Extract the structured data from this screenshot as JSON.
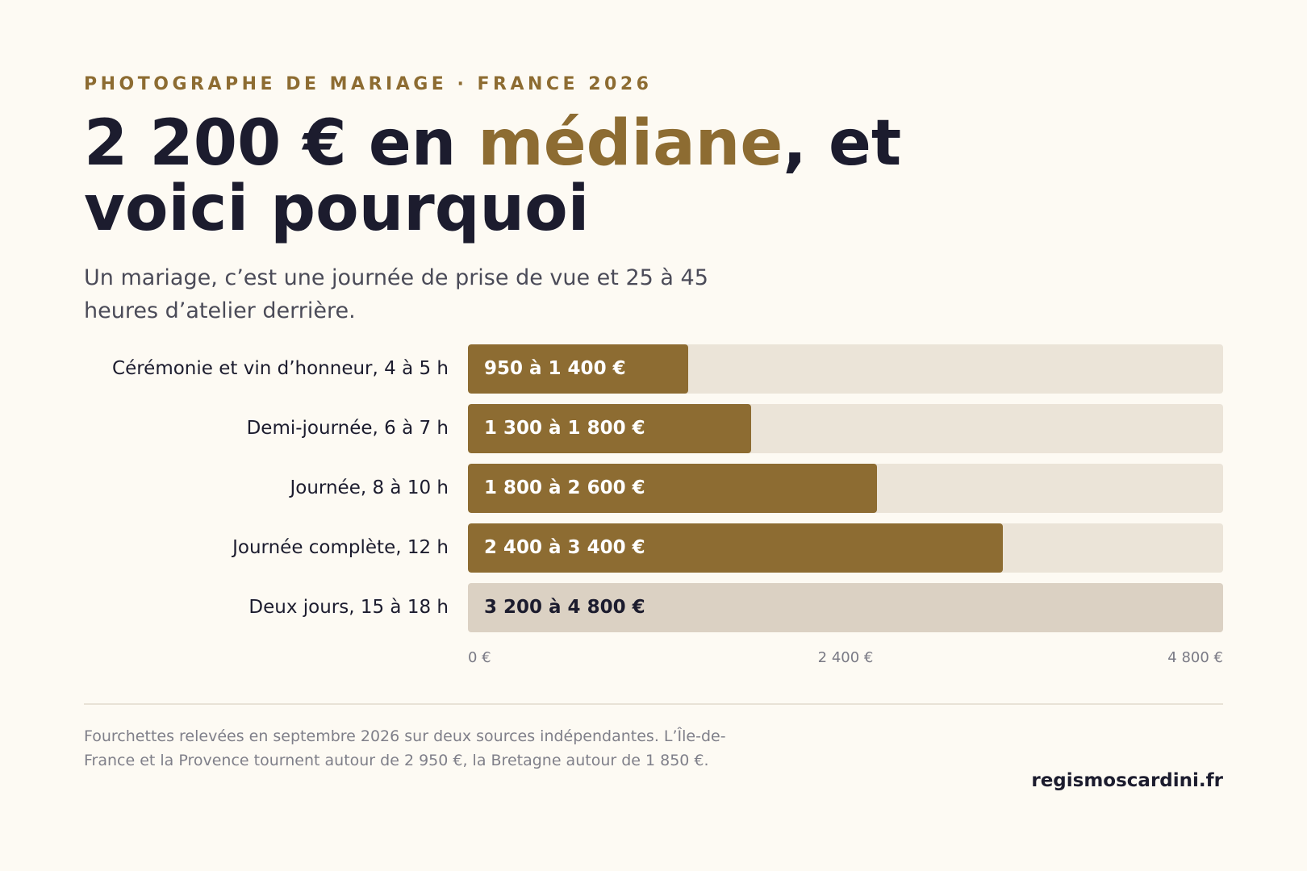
{
  "header": {
    "eyebrow": "PHOTOGRAPHE DE MARIAGE · FRANCE 2026",
    "headline_before": "2 200 € en ",
    "headline_accent": "médiane",
    "headline_after": ", et voici pourquoi",
    "subtitle": "Un mariage, c’est une journée de prise de vue et 25 à 45 heures d’atelier derrière."
  },
  "colors": {
    "background": "#fdfaf3",
    "accent": "#8d6c32",
    "bar": "#8d6c32",
    "bar_muted": "#dbd1c3",
    "track": "#ebe4d8",
    "text": "#1c1c2e"
  },
  "chart_data": {
    "type": "bar",
    "orientation": "horizontal",
    "categories": [
      "Cérémonie et vin d’honneur, 4 à 5 h",
      "Demi-journée, 6 à 7 h",
      "Journée, 8 à 10 h",
      "Journée complète, 12 h",
      "Deux jours, 15 à 18 h"
    ],
    "values": [
      1400,
      1800,
      2600,
      3400,
      4800
    ],
    "value_labels": [
      "950 à 1 400 €",
      "1 300 à 1 800 €",
      "1 800 à 2 600 €",
      "2 400 à 3 400 €",
      "3 200 à 4 800 €"
    ],
    "xlim": [
      0,
      4800
    ],
    "xticks": [
      "0 €",
      "2 400 €",
      "4 800 €"
    ],
    "xtick_values": [
      0,
      2400,
      4800
    ],
    "muted_last_bar": true,
    "grid": false
  },
  "footer": {
    "note": "Fourchettes relevées en septembre 2026 sur deux sources indépendantes. L’Île-de-France et la Provence tournent autour de 2 950 €, la Bretagne autour de 1 850 €.",
    "site": "regismoscardini.fr"
  }
}
